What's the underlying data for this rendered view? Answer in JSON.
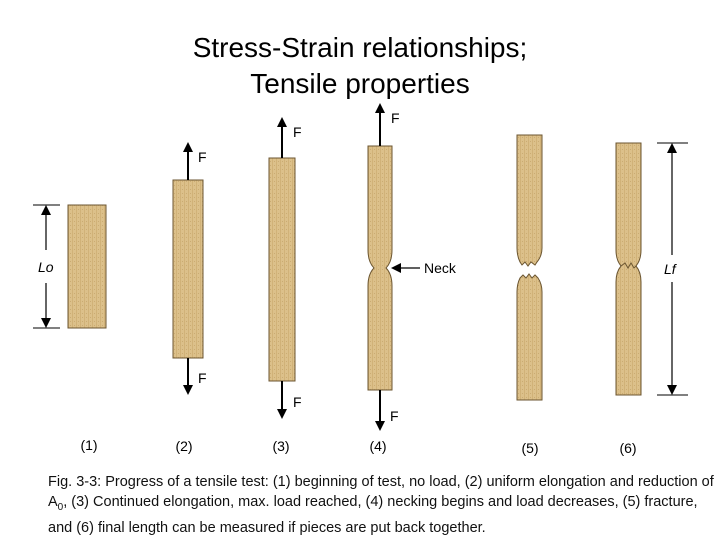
{
  "title": {
    "line1": "Stress-Strain relationships;",
    "line2": "Tensile properties"
  },
  "figure": {
    "force_label": "F",
    "neck_label": "Neck",
    "original_length_label": "Lo",
    "final_length_label": "Lf",
    "stages": [
      "(1)",
      "(2)",
      "(3)",
      "(4)",
      "(5)",
      "(6)"
    ]
  },
  "caption": {
    "part1": "Fig. 3-3: Progress of a tensile test: (1) beginning of test, no load, (2) uniform elongation and reduction of A",
    "sub": "0",
    "part2": ", (3) Continued elongation, max. load reached, (4) necking begins and load decreases, (5) fracture, and (6) final length can be measured if pieces are put back together."
  },
  "colors": {
    "specimen_fill": "#dcc08a",
    "specimen_stroke": "#6b5530",
    "arrow": "#000000"
  }
}
